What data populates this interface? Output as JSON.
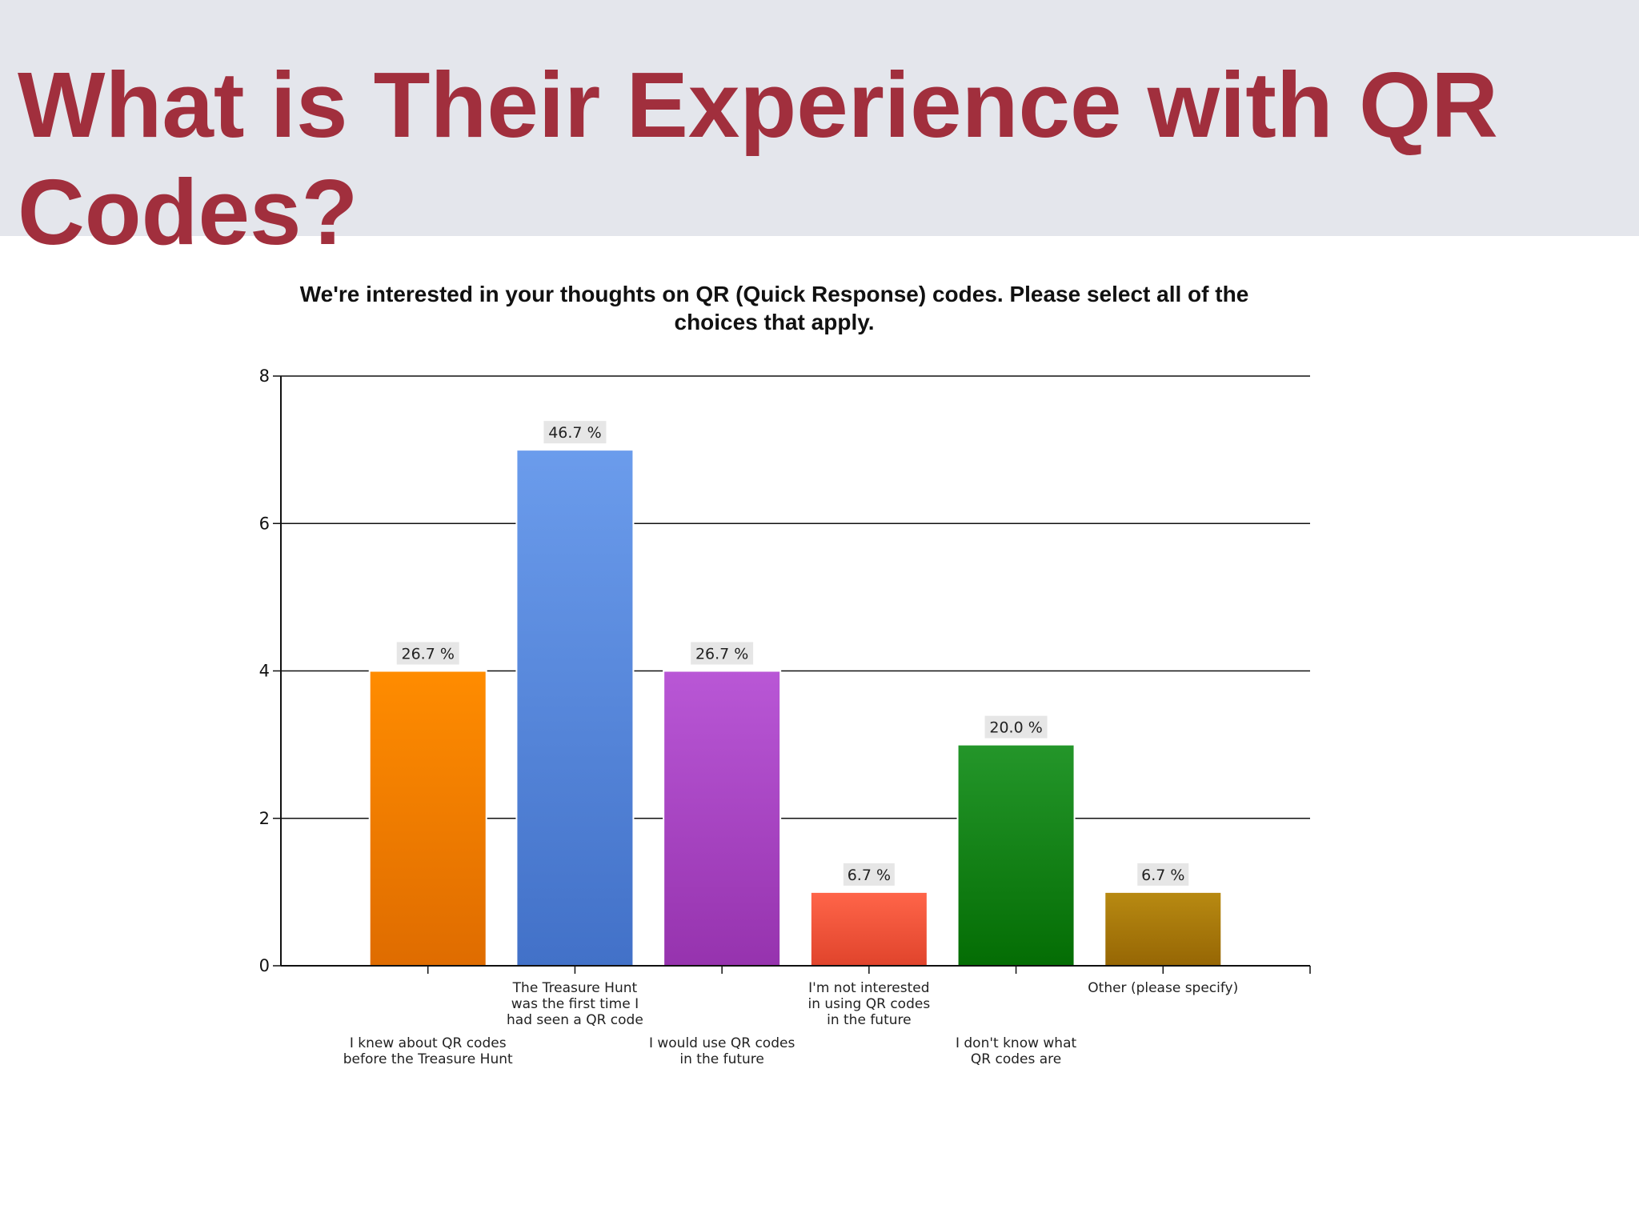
{
  "slide": {
    "title": "What is Their Experience with QR Codes?"
  },
  "chart_data": {
    "type": "bar",
    "title": "We're interested in your thoughts on QR (Quick Response) codes. Please select all of the choices that apply.",
    "xlabel": "",
    "ylabel": "",
    "ylim": [
      0,
      8
    ],
    "yticks": [
      0,
      2,
      4,
      6,
      8
    ],
    "grid": true,
    "categories": [
      [
        "I knew about QR codes",
        "before the Treasure Hunt"
      ],
      [
        "The Treasure Hunt",
        "was the first time I",
        "had seen a QR code"
      ],
      [
        "I would use QR codes",
        "in the future"
      ],
      [
        "I'm not interested",
        "in using QR codes",
        "in the future"
      ],
      [
        "I don't know what",
        "QR codes are"
      ],
      [
        "Other (please specify)"
      ]
    ],
    "values": [
      4,
      7,
      4,
      1,
      3,
      1
    ],
    "labels": [
      "26.7 %",
      "46.7 %",
      "26.7 %",
      "6.7 %",
      "20.0 %",
      "6.7 %"
    ],
    "colors": [
      [
        "#ff8c00",
        "#df6c00"
      ],
      [
        "#6b9cec",
        "#4271c8"
      ],
      [
        "#b957d6",
        "#9633ae"
      ],
      [
        "#ff6549",
        "#e0442c"
      ],
      [
        "#24962a",
        "#046d04"
      ],
      [
        "#b88a12",
        "#966604"
      ]
    ]
  }
}
